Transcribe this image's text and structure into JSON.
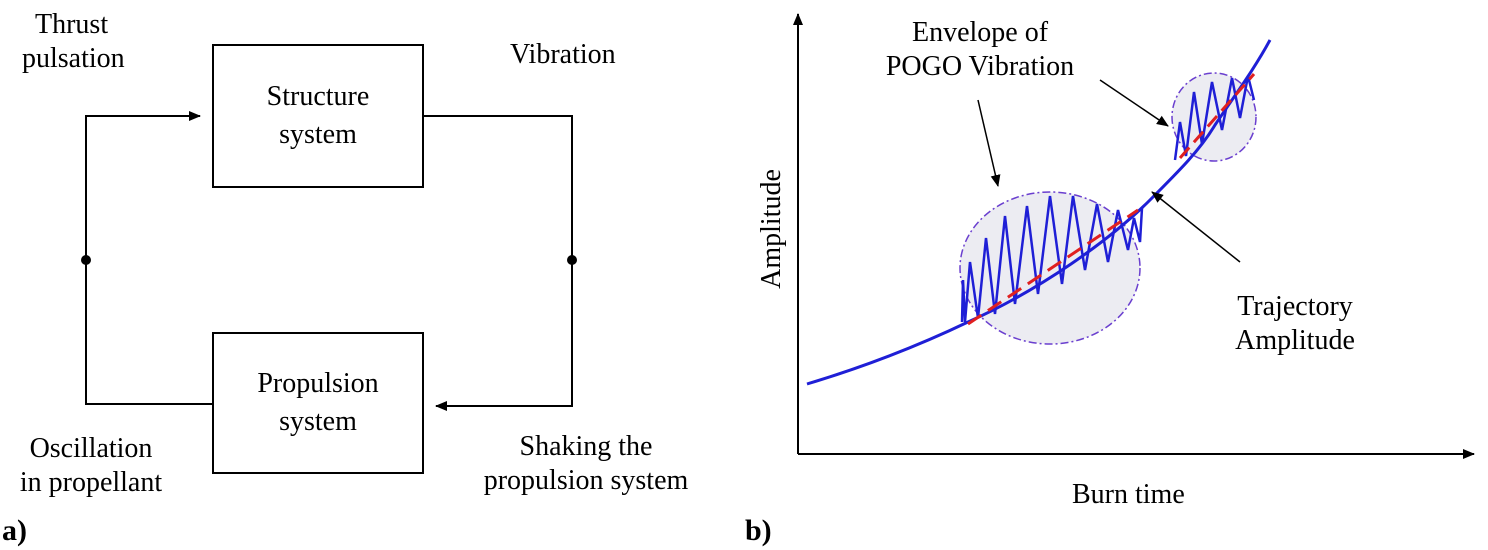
{
  "panel_a": {
    "label": "a)",
    "structure_box": {
      "line1": "Structure",
      "line2": "system"
    },
    "propulsion_box": {
      "line1": "Propulsion",
      "line2": "system"
    },
    "thrust": {
      "line1": "Thrust",
      "line2": "pulsation"
    },
    "vibration": "Vibration",
    "oscillation": {
      "line1": "Oscillation",
      "line2": "in propellant"
    },
    "shaking": {
      "line1": "Shaking the",
      "line2": "propulsion system"
    }
  },
  "panel_b": {
    "label": "b)",
    "x_axis_label": "Burn time",
    "y_axis_label": "Amplitude",
    "envelope_label": {
      "line1": "Envelope of",
      "line2": "POGO Vibration"
    },
    "trajectory_label": {
      "line1": "Trajectory",
      "line2": "Amplitude"
    }
  },
  "colors": {
    "curve": "#1f1fd6",
    "trend": "#e02020",
    "envelope_fill": "#ececf2",
    "envelope_stroke": "#6a3fcf",
    "line": "#000000"
  }
}
